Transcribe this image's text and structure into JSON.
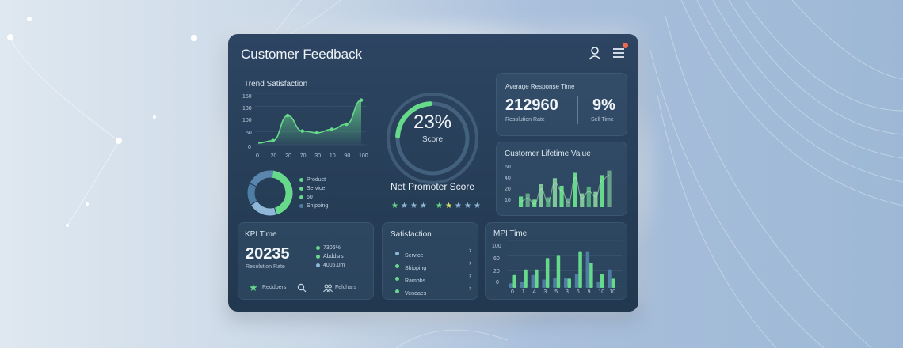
{
  "dashboard": {
    "title": "Customer Feedback",
    "icons": [
      "user-icon",
      "menu-icon"
    ],
    "notification_color": "#f0684d"
  },
  "trend": {
    "title": "Trend Satisfaction",
    "y_ticks": [
      "150",
      "130",
      "100",
      "50",
      "0"
    ],
    "x_ticks": [
      "0",
      "20",
      "20",
      "70",
      "30",
      "10",
      "90",
      "100"
    ]
  },
  "donut": {
    "legend": [
      "Product",
      "Service",
      "60",
      "Shipping"
    ]
  },
  "nps": {
    "percent": "23%",
    "score_label": "Score",
    "title": "Net Promoter Score",
    "gauge_value": 0.23
  },
  "response": {
    "title": "Average Response Time",
    "value": "212960",
    "value_label": "Resolution Rate",
    "percent": "9%",
    "percent_label": "Sell Time"
  },
  "clv": {
    "title": "Customer Lifetime Value",
    "y_ticks": [
      "60",
      "40",
      "20",
      "10"
    ]
  },
  "kpi": {
    "title": "KPI Time",
    "value": "20235",
    "value_label": "Resolution Rate",
    "list": [
      "7306%",
      "Abddsrs",
      "4006.0m"
    ],
    "footer_left": "Reddbers",
    "footer_right": "Felchars"
  },
  "satisfaction": {
    "title": "Satisfaction",
    "items": [
      "Service",
      "Shipping",
      "Ramobs",
      "Vendaes"
    ]
  },
  "mpi": {
    "title": "MPI Time",
    "y_ticks": [
      "100",
      "60",
      "20",
      "0"
    ],
    "x_ticks": [
      "0",
      "1",
      "4",
      "3",
      "5",
      "3",
      "6",
      "9",
      "10",
      "10"
    ]
  },
  "colors": {
    "accent": "#67d98b",
    "secondary": "#4f7ea5",
    "panel": "#26405a"
  },
  "chart_data": [
    {
      "type": "area",
      "title": "Trend Satisfaction",
      "x": [
        "0",
        "20",
        "20",
        "70",
        "30",
        "10",
        "90",
        "100"
      ],
      "values": [
        5,
        12,
        85,
        40,
        35,
        45,
        60,
        130
      ],
      "ylim": [
        0,
        150
      ]
    },
    {
      "type": "pie",
      "categories": [
        "Product",
        "Service",
        "60",
        "Shipping"
      ],
      "values": [
        45,
        20,
        15,
        20
      ]
    },
    {
      "type": "bar",
      "title": "Customer Lifetime Value",
      "values": [
        14,
        18,
        10,
        30,
        13,
        38,
        28,
        12,
        45,
        18,
        27,
        20,
        42,
        48
      ],
      "ylim": [
        0,
        60
      ]
    },
    {
      "type": "bar",
      "title": "MPI Time",
      "categories": [
        "0",
        "1",
        "4",
        "3",
        "5",
        "3",
        "6",
        "9",
        "10",
        "10"
      ],
      "series": [
        {
          "values": [
            10,
            14,
            28,
            18,
            22,
            22,
            30,
            80,
            14,
            40
          ]
        },
        {
          "values": [
            28,
            40,
            40,
            65,
            70,
            20,
            80,
            55,
            30,
            20
          ]
        }
      ],
      "ylim": [
        0,
        100
      ]
    }
  ]
}
